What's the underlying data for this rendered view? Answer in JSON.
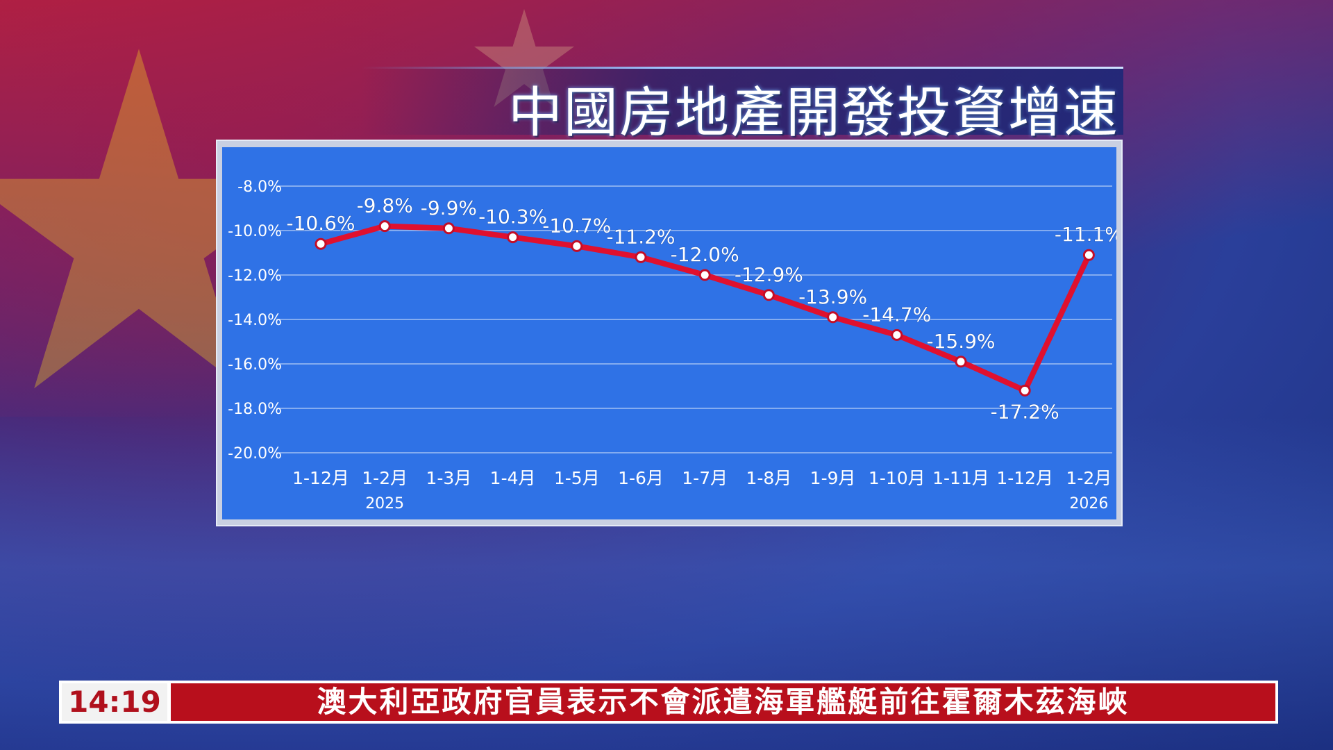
{
  "title": "中國房地產開發投資增速",
  "ticker": {
    "time": "14:19",
    "headline": "澳大利亞政府官員表示不會派遣海軍艦艇前往霍爾木茲海峽"
  },
  "colors": {
    "plot_bg": "#2f72e6",
    "line": "#e0102e",
    "ticker_red": "#b80f1c"
  },
  "chart_data": {
    "type": "line",
    "title": "中國房地產開發投資增速",
    "categories": [
      "1-12月",
      "1-2月",
      "1-3月",
      "1-4月",
      "1-5月",
      "1-6月",
      "1-7月",
      "1-8月",
      "1-9月",
      "1-10月",
      "1-11月",
      "1-12月",
      "1-2月"
    ],
    "year_labels": [
      "",
      "2025",
      "",
      "",
      "",
      "",
      "",
      "",
      "",
      "",
      "",
      "",
      "2026"
    ],
    "values": [
      -10.6,
      -9.8,
      -9.9,
      -10.3,
      -10.7,
      -11.2,
      -12.0,
      -12.9,
      -13.9,
      -14.7,
      -15.9,
      -17.2,
      -11.1
    ],
    "data_labels": [
      "-10.6%",
      "-9.8%",
      "-9.9%",
      "-10.3%",
      "-10.7%",
      "-11.2%",
      "-12.0%",
      "-12.9%",
      "-13.9%",
      "-14.7%",
      "-15.9%",
      "-17.2%",
      "-11.1%"
    ],
    "y_ticks": [
      "-8.0%",
      "-10.0%",
      "-12.0%",
      "-14.0%",
      "-16.0%",
      "-18.0%",
      "-20.0%"
    ],
    "ylim": [
      -20,
      -8
    ],
    "grid": true,
    "legend": "none"
  }
}
